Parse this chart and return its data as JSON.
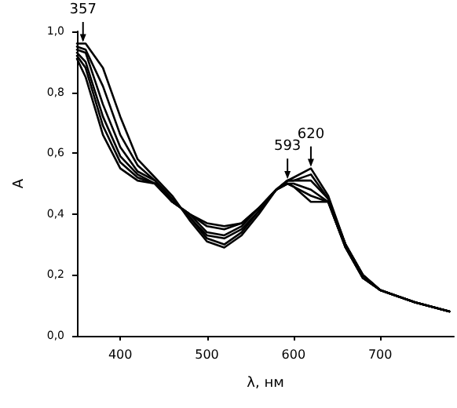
{
  "chart_data": {
    "type": "line",
    "xlabel": "λ, нм",
    "ylabel": "A",
    "x": [
      350,
      360,
      380,
      400,
      420,
      440,
      460,
      480,
      500,
      520,
      540,
      560,
      580,
      593,
      600,
      620,
      640,
      660,
      680,
      700,
      740,
      780
    ],
    "series": [
      {
        "color": "#000000",
        "values": [
          0.96,
          0.96,
          0.88,
          0.72,
          0.58,
          0.52,
          0.46,
          0.38,
          0.31,
          0.29,
          0.33,
          0.4,
          0.48,
          0.51,
          0.52,
          0.55,
          0.46,
          0.3,
          0.2,
          0.15,
          0.11,
          0.08
        ]
      },
      {
        "color": "#000000",
        "values": [
          0.95,
          0.94,
          0.82,
          0.66,
          0.56,
          0.51,
          0.45,
          0.39,
          0.32,
          0.3,
          0.34,
          0.41,
          0.48,
          0.51,
          0.51,
          0.53,
          0.45,
          0.3,
          0.2,
          0.15,
          0.11,
          0.08
        ]
      },
      {
        "color": "#000000",
        "values": [
          0.94,
          0.93,
          0.76,
          0.62,
          0.54,
          0.51,
          0.45,
          0.39,
          0.33,
          0.32,
          0.35,
          0.41,
          0.48,
          0.51,
          0.51,
          0.51,
          0.45,
          0.3,
          0.2,
          0.15,
          0.11,
          0.08
        ]
      },
      {
        "color": "#000000",
        "values": [
          0.93,
          0.9,
          0.72,
          0.59,
          0.53,
          0.5,
          0.44,
          0.4,
          0.34,
          0.33,
          0.36,
          0.42,
          0.48,
          0.5,
          0.5,
          0.48,
          0.44,
          0.29,
          0.19,
          0.15,
          0.11,
          0.08
        ]
      },
      {
        "color": "#000000",
        "values": [
          0.92,
          0.88,
          0.69,
          0.57,
          0.52,
          0.5,
          0.44,
          0.4,
          0.36,
          0.35,
          0.37,
          0.42,
          0.48,
          0.5,
          0.49,
          0.46,
          0.44,
          0.29,
          0.19,
          0.15,
          0.11,
          0.08
        ]
      },
      {
        "color": "#000000",
        "values": [
          0.91,
          0.85,
          0.66,
          0.55,
          0.51,
          0.5,
          0.44,
          0.4,
          0.37,
          0.36,
          0.37,
          0.42,
          0.48,
          0.5,
          0.49,
          0.44,
          0.44,
          0.29,
          0.19,
          0.15,
          0.11,
          0.08
        ]
      }
    ],
    "xlim": [
      350,
      785
    ],
    "xticks": [
      400,
      500,
      600,
      700
    ],
    "ylim": [
      0,
      1
    ],
    "yticks": [
      {
        "value": 0,
        "label": "0,0"
      },
      {
        "value": 0.2,
        "label": "0,2"
      },
      {
        "value": 0.4,
        "label": "0,4"
      },
      {
        "value": 0.6,
        "label": "0,6"
      },
      {
        "value": 0.8,
        "label": "0,8"
      },
      {
        "value": 1,
        "label": "1,0"
      }
    ],
    "annotations": [
      {
        "text": "357",
        "x": 357,
        "y": 0.96
      },
      {
        "text": "593",
        "x": 593,
        "y": 0.51
      },
      {
        "text": "620",
        "x": 620,
        "y": 0.55
      }
    ],
    "grid": false,
    "marker": "none",
    "line_style": "solid"
  }
}
